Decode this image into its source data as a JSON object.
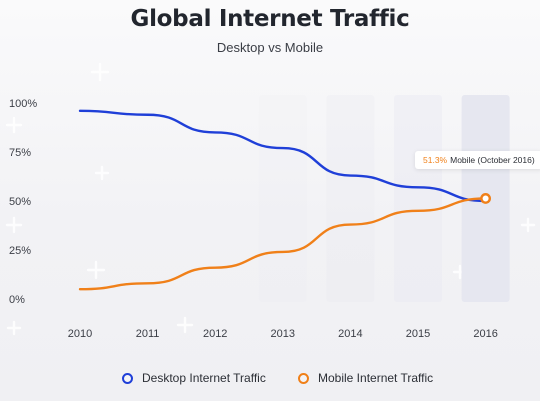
{
  "title": "Global Internet Traffic",
  "subtitle": "Desktop vs Mobile",
  "colors": {
    "desktop": "#1f3fd8",
    "mobile": "#f08019",
    "highlight": "#e6e7f0"
  },
  "tooltip": {
    "value": "51.3%",
    "label": "Mobile (October 2016)"
  },
  "chart_data": {
    "type": "line",
    "title": "Global Internet Traffic",
    "subtitle": "Desktop vs Mobile",
    "x_categories": [
      "2010",
      "2011",
      "2012",
      "2013",
      "2014",
      "2015",
      "2016"
    ],
    "y_ticks": [
      "100%",
      "75%",
      "50%",
      "25%",
      "0%"
    ],
    "ylim": [
      0,
      100
    ],
    "grid": false,
    "legend_position": "bottom",
    "highlighted_category": "2016",
    "series": [
      {
        "name": "Desktop Internet Traffic",
        "color": "#1f3fd8",
        "x": [
          2010,
          2011,
          2012,
          2013,
          2014,
          2015,
          2016
        ],
        "values": [
          96,
          94,
          85,
          77,
          63,
          57,
          50
        ]
      },
      {
        "name": "Mobile Internet Traffic",
        "color": "#f08019",
        "x": [
          2010,
          2011,
          2012,
          2013,
          2014,
          2015,
          2016
        ],
        "values": [
          5,
          8,
          16,
          24,
          38,
          45,
          51.3
        ]
      }
    ],
    "annotation": {
      "series": "Mobile Internet Traffic",
      "x": 2016,
      "value": 51.3,
      "text": "51.3% Mobile (October 2016)"
    }
  }
}
